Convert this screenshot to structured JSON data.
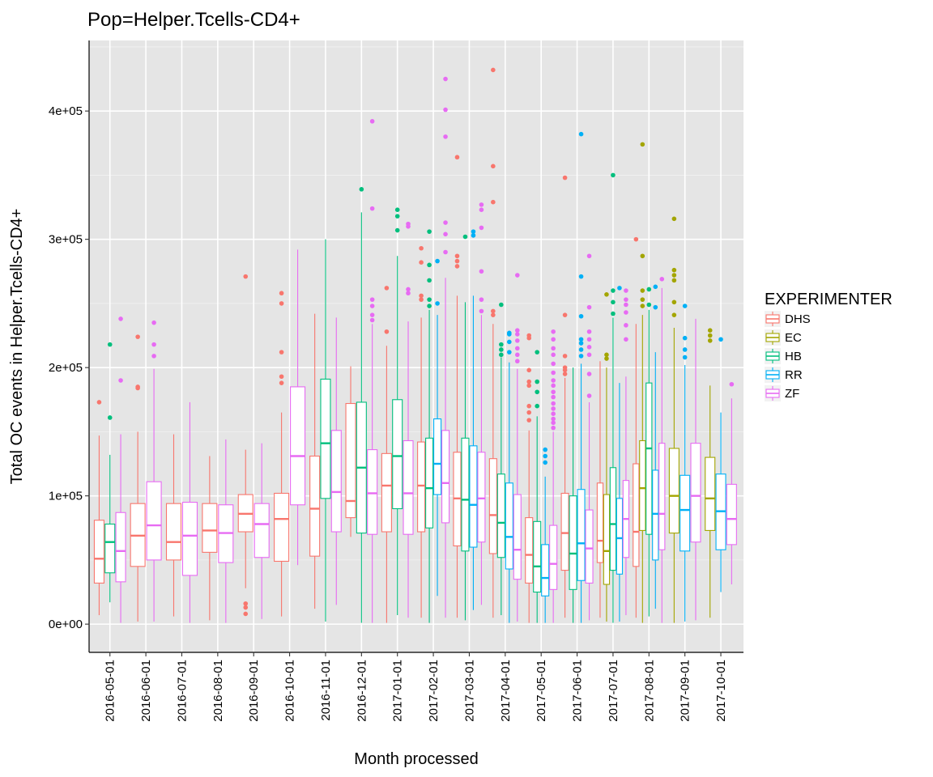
{
  "chart_data": {
    "type": "boxplot",
    "title": "Pop=Helper.Tcells-CD4+",
    "xlabel": "Month processed",
    "ylabel": "Total OC events in Helper.Tcells-CD4+",
    "ylim": [
      -22000,
      455000
    ],
    "y_ticks": [
      {
        "value": 0,
        "label": "0e+00"
      },
      {
        "value": 100000,
        "label": "1e+05"
      },
      {
        "value": 200000,
        "label": "2e+05"
      },
      {
        "value": 300000,
        "label": "3e+05"
      },
      {
        "value": 400000,
        "label": "4e+05"
      }
    ],
    "categories": [
      "2016-05-01",
      "2016-06-01",
      "2016-07-01",
      "2016-08-01",
      "2016-09-01",
      "2016-10-01",
      "2016-11-01",
      "2016-12-01",
      "2017-01-01",
      "2017-02-01",
      "2017-03-01",
      "2017-04-01",
      "2017-05-01",
      "2017-06-01",
      "2017-07-01",
      "2017-08-01",
      "2017-09-01",
      "2017-10-01"
    ],
    "grid": true,
    "background": "#e5e5e5",
    "legend": {
      "title": "EXPERIMENTER",
      "position": "right",
      "entries": [
        {
          "name": "DHS",
          "color": "#F8766D"
        },
        {
          "name": "EC",
          "color": "#A3A500"
        },
        {
          "name": "HB",
          "color": "#00BF7D"
        },
        {
          "name": "RR",
          "color": "#00B0F6"
        },
        {
          "name": "ZF",
          "color": "#E76BF3"
        }
      ]
    },
    "groups": [
      {
        "category": "2016-05-01",
        "boxes": [
          {
            "series": "DHS",
            "min": 7000,
            "q1": 32000,
            "median": 51000,
            "q3": 81000,
            "max": 147000,
            "outliers": [
              173000
            ]
          },
          {
            "series": "HB",
            "min": 17000,
            "q1": 40000,
            "median": 64000,
            "q3": 78000,
            "max": 132000,
            "outliers": [
              161000,
              218000
            ]
          },
          {
            "series": "ZF",
            "min": 1000,
            "q1": 33000,
            "median": 57000,
            "q3": 87000,
            "max": 148000,
            "outliers": [
              190000,
              238000
            ]
          }
        ]
      },
      {
        "category": "2016-06-01",
        "boxes": [
          {
            "series": "DHS",
            "min": 2000,
            "q1": 45000,
            "median": 69000,
            "q3": 94000,
            "max": 150000,
            "outliers": [
              184000,
              185000,
              224000
            ]
          },
          {
            "series": "ZF",
            "min": 2000,
            "q1": 50000,
            "median": 77000,
            "q3": 111000,
            "max": 199000,
            "outliers": [
              209000,
              218000,
              235000
            ]
          }
        ]
      },
      {
        "category": "2016-07-01",
        "boxes": [
          {
            "series": "DHS",
            "min": 6000,
            "q1": 50000,
            "median": 64000,
            "q3": 94000,
            "max": 148000,
            "outliers": []
          },
          {
            "series": "ZF",
            "min": 1000,
            "q1": 38000,
            "median": 69000,
            "q3": 95000,
            "max": 173000,
            "outliers": []
          }
        ]
      },
      {
        "category": "2016-08-01",
        "boxes": [
          {
            "series": "DHS",
            "min": 3000,
            "q1": 56000,
            "median": 73000,
            "q3": 94000,
            "max": 131000,
            "outliers": []
          },
          {
            "series": "ZF",
            "min": 1000,
            "q1": 48000,
            "median": 71000,
            "q3": 93000,
            "max": 144000,
            "outliers": []
          }
        ]
      },
      {
        "category": "2016-09-01",
        "boxes": [
          {
            "series": "DHS",
            "min": 28000,
            "q1": 72000,
            "median": 86000,
            "q3": 101000,
            "max": 136000,
            "outliers": [
              8000,
              13000,
              16000,
              271000
            ]
          },
          {
            "series": "ZF",
            "min": 4000,
            "q1": 52000,
            "median": 78000,
            "q3": 94000,
            "max": 141000,
            "outliers": []
          }
        ]
      },
      {
        "category": "2016-10-01",
        "boxes": [
          {
            "series": "DHS",
            "min": 6000,
            "q1": 49000,
            "median": 82000,
            "q3": 102000,
            "max": 165000,
            "outliers": [
              188000,
              193000,
              212000,
              250000,
              258000
            ]
          },
          {
            "series": "ZF",
            "min": 46000,
            "q1": 93000,
            "median": 131000,
            "q3": 185000,
            "max": 292000,
            "outliers": []
          }
        ]
      },
      {
        "category": "2016-11-01",
        "boxes": [
          {
            "series": "DHS",
            "min": 12000,
            "q1": 53000,
            "median": 90000,
            "q3": 131000,
            "max": 242000,
            "outliers": []
          },
          {
            "series": "HB",
            "min": 2000,
            "q1": 98000,
            "median": 141000,
            "q3": 191000,
            "max": 300000,
            "outliers": []
          },
          {
            "series": "ZF",
            "min": 15000,
            "q1": 72000,
            "median": 103000,
            "q3": 151000,
            "max": 239000,
            "outliers": []
          }
        ]
      },
      {
        "category": "2016-12-01",
        "boxes": [
          {
            "series": "DHS",
            "min": 68000,
            "q1": 83000,
            "median": 96000,
            "q3": 172000,
            "max": 201000,
            "outliers": []
          },
          {
            "series": "HB",
            "min": 1000,
            "q1": 71000,
            "median": 122000,
            "q3": 173000,
            "max": 321000,
            "outliers": [
              339000
            ]
          },
          {
            "series": "ZF",
            "min": 1000,
            "q1": 70000,
            "median": 102000,
            "q3": 136000,
            "max": 234000,
            "outliers": [
              237000,
              241000,
              248000,
              253000,
              324000,
              392000
            ]
          }
        ]
      },
      {
        "category": "2017-01-01",
        "boxes": [
          {
            "series": "DHS",
            "min": 1000,
            "q1": 72000,
            "median": 108000,
            "q3": 133000,
            "max": 217000,
            "outliers": [
              228000,
              262000
            ]
          },
          {
            "series": "HB",
            "min": 7000,
            "q1": 90000,
            "median": 131000,
            "q3": 175000,
            "max": 287000,
            "outliers": [
              307000,
              318000,
              323000
            ]
          },
          {
            "series": "ZF",
            "min": 5000,
            "q1": 70000,
            "median": 102000,
            "q3": 143000,
            "max": 236000,
            "outliers": [
              258000,
              261000,
              310000,
              312000
            ]
          }
        ]
      },
      {
        "category": "2017-02-01",
        "boxes": [
          {
            "series": "DHS",
            "min": 5000,
            "q1": 72000,
            "median": 108000,
            "q3": 142000,
            "max": 239000,
            "outliers": [
              253000,
              256000,
              282000,
              293000
            ]
          },
          {
            "series": "HB",
            "min": 1000,
            "q1": 75000,
            "median": 106000,
            "q3": 145000,
            "max": 245000,
            "outliers": [
              248000,
              253000,
              268000,
              280000,
              306000
            ]
          },
          {
            "series": "RR",
            "min": 22000,
            "q1": 101000,
            "median": 125000,
            "q3": 160000,
            "max": 241000,
            "outliers": [
              250000,
              283000
            ]
          },
          {
            "series": "ZF",
            "min": 5000,
            "q1": 79000,
            "median": 110000,
            "q3": 151000,
            "max": 270000,
            "outliers": [
              290000,
              304000,
              313000,
              380000,
              401000,
              425000
            ]
          }
        ]
      },
      {
        "category": "2017-03-01",
        "boxes": [
          {
            "series": "DHS",
            "min": 5000,
            "q1": 61000,
            "median": 98000,
            "q3": 134000,
            "max": 256000,
            "outliers": [
              279000,
              283000,
              287000,
              364000
            ]
          },
          {
            "series": "HB",
            "min": 3000,
            "q1": 57000,
            "median": 97000,
            "q3": 145000,
            "max": 251000,
            "outliers": [
              302000
            ]
          },
          {
            "series": "RR",
            "min": 11000,
            "q1": 60000,
            "median": 93000,
            "q3": 139000,
            "max": 256000,
            "outliers": [
              303000,
              306000
            ]
          },
          {
            "series": "ZF",
            "min": 15000,
            "q1": 64000,
            "median": 98000,
            "q3": 134000,
            "max": 241000,
            "outliers": [
              244000,
              253000,
              275000,
              309000,
              323000,
              327000
            ]
          }
        ]
      },
      {
        "category": "2017-04-01",
        "boxes": [
          {
            "series": "DHS",
            "min": 5000,
            "q1": 55000,
            "median": 85000,
            "q3": 129000,
            "max": 234000,
            "outliers": [
              241000,
              244000,
              329000,
              357000,
              432000
            ]
          },
          {
            "series": "HB",
            "min": 7000,
            "q1": 52000,
            "median": 79000,
            "q3": 117000,
            "max": 208000,
            "outliers": [
              210000,
              214000,
              218000,
              249000
            ]
          },
          {
            "series": "RR",
            "min": 1000,
            "q1": 43000,
            "median": 68000,
            "q3": 110000,
            "max": 204000,
            "outliers": [
              212000,
              220000,
              226000,
              227000
            ]
          },
          {
            "series": "ZF",
            "min": 2000,
            "q1": 35000,
            "median": 58000,
            "q3": 101000,
            "max": 199000,
            "outliers": [
              205000,
              210000,
              215000,
              221000,
              226000,
              229000,
              272000
            ]
          }
        ]
      },
      {
        "category": "2017-05-01",
        "boxes": [
          {
            "series": "DHS",
            "min": 1000,
            "q1": 32000,
            "median": 54000,
            "q3": 83000,
            "max": 151000,
            "outliers": [
              159000,
              165000,
              170000,
              186000,
              189000,
              198000,
              223000,
              225000
            ]
          },
          {
            "series": "HB",
            "min": 1000,
            "q1": 25000,
            "median": 45000,
            "q3": 80000,
            "max": 162000,
            "outliers": [
              170000,
              181000,
              189000,
              212000
            ]
          },
          {
            "series": "RR",
            "min": 1000,
            "q1": 22000,
            "median": 36000,
            "q3": 62000,
            "max": 115000,
            "outliers": [
              126000,
              131000,
              136000
            ]
          },
          {
            "series": "ZF",
            "min": 1000,
            "q1": 27000,
            "median": 47000,
            "q3": 77000,
            "max": 150000,
            "outliers": [
              153000,
              157000,
              160000,
              164000,
              168000,
              172000,
              177000,
              181000,
              186000,
              190000,
              196000,
              203000,
              210000,
              215000,
              222000,
              228000
            ]
          }
        ]
      },
      {
        "category": "2017-06-01",
        "boxes": [
          {
            "series": "DHS",
            "min": 5000,
            "q1": 42000,
            "median": 71000,
            "q3": 102000,
            "max": 192000,
            "outliers": [
              195000,
              198000,
              200000,
              209000,
              241000,
              348000
            ]
          },
          {
            "series": "HB",
            "min": 1000,
            "q1": 27000,
            "median": 55000,
            "q3": 100000,
            "max": 200000,
            "outliers": []
          },
          {
            "series": "RR",
            "min": 1000,
            "q1": 34000,
            "median": 63000,
            "q3": 105000,
            "max": 203000,
            "outliers": [
              209000,
              214000,
              219000,
              222000,
              240000,
              271000,
              382000
            ]
          },
          {
            "series": "ZF",
            "min": 3000,
            "q1": 32000,
            "median": 59000,
            "q3": 89000,
            "max": 173000,
            "outliers": [
              178000,
              195000,
              210000,
              216000,
              222000,
              228000,
              247000,
              287000
            ]
          }
        ]
      },
      {
        "category": "2017-07-01",
        "boxes": [
          {
            "series": "DHS",
            "min": 5000,
            "q1": 48000,
            "median": 65000,
            "q3": 110000,
            "max": 205000,
            "outliers": []
          },
          {
            "series": "EC",
            "min": 2000,
            "q1": 31000,
            "median": 57000,
            "q3": 101000,
            "max": 200000,
            "outliers": [
              207000,
              210000,
              257000
            ]
          },
          {
            "series": "HB",
            "min": 1000,
            "q1": 42000,
            "median": 78000,
            "q3": 122000,
            "max": 239000,
            "outliers": [
              242000,
              251000,
              260000,
              350000
            ]
          },
          {
            "series": "RR",
            "min": 2000,
            "q1": 39000,
            "median": 67000,
            "q3": 98000,
            "max": 188000,
            "outliers": [
              262000
            ]
          },
          {
            "series": "ZF",
            "min": 7000,
            "q1": 52000,
            "median": 82000,
            "q3": 112000,
            "max": 193000,
            "outliers": [
              222000,
              233000,
              243000,
              249000,
              253000,
              260000
            ]
          }
        ]
      },
      {
        "category": "2017-08-01",
        "boxes": [
          {
            "series": "DHS",
            "min": 5000,
            "q1": 45000,
            "median": 72000,
            "q3": 125000,
            "max": 234000,
            "outliers": [
              300000
            ]
          },
          {
            "series": "EC",
            "min": 1000,
            "q1": 73000,
            "median": 106000,
            "q3": 143000,
            "max": 241000,
            "outliers": [
              248000,
              253000,
              260000,
              287000,
              374000
            ]
          },
          {
            "series": "HB",
            "min": 6000,
            "q1": 70000,
            "median": 137000,
            "q3": 188000,
            "max": 245000,
            "outliers": [
              249000,
              261000
            ]
          },
          {
            "series": "RR",
            "min": 12000,
            "q1": 50000,
            "median": 86000,
            "q3": 120000,
            "max": 212000,
            "outliers": [
              247000,
              263000
            ]
          },
          {
            "series": "ZF",
            "min": 1000,
            "q1": 58000,
            "median": 86000,
            "q3": 141000,
            "max": 262000,
            "outliers": [
              269000
            ]
          }
        ]
      },
      {
        "category": "2017-09-01",
        "boxes": [
          {
            "series": "EC",
            "min": 1000,
            "q1": 71000,
            "median": 100000,
            "q3": 137000,
            "max": 231000,
            "outliers": [
              241000,
              251000,
              268000,
              272000,
              276000,
              316000
            ]
          },
          {
            "series": "RR",
            "min": 2000,
            "q1": 57000,
            "median": 89000,
            "q3": 116000,
            "max": 202000,
            "outliers": [
              208000,
              214000,
              223000,
              248000
            ]
          },
          {
            "series": "ZF",
            "min": 3000,
            "q1": 64000,
            "median": 100000,
            "q3": 141000,
            "max": 238000,
            "outliers": []
          }
        ]
      },
      {
        "category": "2017-10-01",
        "boxes": [
          {
            "series": "EC",
            "min": 5000,
            "q1": 73000,
            "median": 98000,
            "q3": 130000,
            "max": 186000,
            "outliers": [
              221000,
              225000,
              229000
            ]
          },
          {
            "series": "RR",
            "min": 25000,
            "q1": 58000,
            "median": 88000,
            "q3": 117000,
            "max": 165000,
            "outliers": [
              222000
            ]
          },
          {
            "series": "ZF",
            "min": 31000,
            "q1": 62000,
            "median": 82000,
            "q3": 109000,
            "max": 176000,
            "outliers": [
              187000
            ]
          }
        ]
      }
    ]
  }
}
